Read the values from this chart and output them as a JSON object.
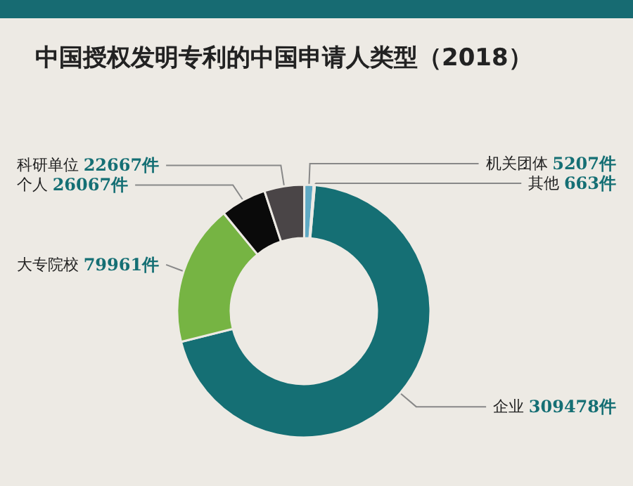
{
  "chart_data": {
    "type": "donut",
    "title": "中国授权发明专利的中国申请人类型（2018）",
    "categories": [
      "企业",
      "大专院校",
      "个人",
      "科研单位",
      "机关团体",
      "其他"
    ],
    "values": [
      309478,
      79961,
      26067,
      22667,
      5207,
      663
    ],
    "value_labels": [
      "309478件",
      "79961件",
      "26067件",
      "22667件",
      "5207件",
      "663件"
    ],
    "colors": [
      "#156f74",
      "#76b443",
      "#0a0a0a",
      "#4a4547",
      "#5fa9c4",
      "#a9d4df"
    ],
    "legend": false
  }
}
